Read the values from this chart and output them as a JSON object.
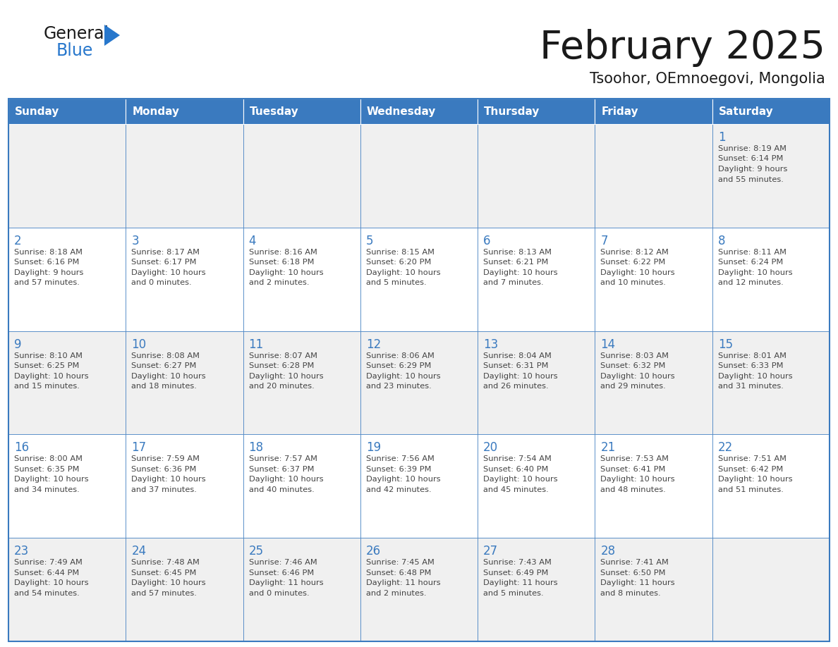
{
  "title": "February 2025",
  "subtitle": "Tsoohor, OEmnoegovi, Mongolia",
  "header_color": "#3a7abf",
  "header_text_color": "#ffffff",
  "cell_bg_light": "#f0f0f0",
  "cell_bg_white": "#ffffff",
  "border_color": "#3a7abf",
  "text_color": "#444444",
  "day_num_color": "#3a7abf",
  "days_of_week": [
    "Sunday",
    "Monday",
    "Tuesday",
    "Wednesday",
    "Thursday",
    "Friday",
    "Saturday"
  ],
  "calendar_data": [
    [
      null,
      null,
      null,
      null,
      null,
      null,
      {
        "day": "1",
        "sunrise": "8:19 AM",
        "sunset": "6:14 PM",
        "daylight_h": "9",
        "daylight_m": "55"
      }
    ],
    [
      {
        "day": "2",
        "sunrise": "8:18 AM",
        "sunset": "6:16 PM",
        "daylight_h": "9",
        "daylight_m": "57"
      },
      {
        "day": "3",
        "sunrise": "8:17 AM",
        "sunset": "6:17 PM",
        "daylight_h": "10",
        "daylight_m": "0"
      },
      {
        "day": "4",
        "sunrise": "8:16 AM",
        "sunset": "6:18 PM",
        "daylight_h": "10",
        "daylight_m": "2"
      },
      {
        "day": "5",
        "sunrise": "8:15 AM",
        "sunset": "6:20 PM",
        "daylight_h": "10",
        "daylight_m": "5"
      },
      {
        "day": "6",
        "sunrise": "8:13 AM",
        "sunset": "6:21 PM",
        "daylight_h": "10",
        "daylight_m": "7"
      },
      {
        "day": "7",
        "sunrise": "8:12 AM",
        "sunset": "6:22 PM",
        "daylight_h": "10",
        "daylight_m": "10"
      },
      {
        "day": "8",
        "sunrise": "8:11 AM",
        "sunset": "6:24 PM",
        "daylight_h": "10",
        "daylight_m": "12"
      }
    ],
    [
      {
        "day": "9",
        "sunrise": "8:10 AM",
        "sunset": "6:25 PM",
        "daylight_h": "10",
        "daylight_m": "15"
      },
      {
        "day": "10",
        "sunrise": "8:08 AM",
        "sunset": "6:27 PM",
        "daylight_h": "10",
        "daylight_m": "18"
      },
      {
        "day": "11",
        "sunrise": "8:07 AM",
        "sunset": "6:28 PM",
        "daylight_h": "10",
        "daylight_m": "20"
      },
      {
        "day": "12",
        "sunrise": "8:06 AM",
        "sunset": "6:29 PM",
        "daylight_h": "10",
        "daylight_m": "23"
      },
      {
        "day": "13",
        "sunrise": "8:04 AM",
        "sunset": "6:31 PM",
        "daylight_h": "10",
        "daylight_m": "26"
      },
      {
        "day": "14",
        "sunrise": "8:03 AM",
        "sunset": "6:32 PM",
        "daylight_h": "10",
        "daylight_m": "29"
      },
      {
        "day": "15",
        "sunrise": "8:01 AM",
        "sunset": "6:33 PM",
        "daylight_h": "10",
        "daylight_m": "31"
      }
    ],
    [
      {
        "day": "16",
        "sunrise": "8:00 AM",
        "sunset": "6:35 PM",
        "daylight_h": "10",
        "daylight_m": "34"
      },
      {
        "day": "17",
        "sunrise": "7:59 AM",
        "sunset": "6:36 PM",
        "daylight_h": "10",
        "daylight_m": "37"
      },
      {
        "day": "18",
        "sunrise": "7:57 AM",
        "sunset": "6:37 PM",
        "daylight_h": "10",
        "daylight_m": "40"
      },
      {
        "day": "19",
        "sunrise": "7:56 AM",
        "sunset": "6:39 PM",
        "daylight_h": "10",
        "daylight_m": "42"
      },
      {
        "day": "20",
        "sunrise": "7:54 AM",
        "sunset": "6:40 PM",
        "daylight_h": "10",
        "daylight_m": "45"
      },
      {
        "day": "21",
        "sunrise": "7:53 AM",
        "sunset": "6:41 PM",
        "daylight_h": "10",
        "daylight_m": "48"
      },
      {
        "day": "22",
        "sunrise": "7:51 AM",
        "sunset": "6:42 PM",
        "daylight_h": "10",
        "daylight_m": "51"
      }
    ],
    [
      {
        "day": "23",
        "sunrise": "7:49 AM",
        "sunset": "6:44 PM",
        "daylight_h": "10",
        "daylight_m": "54"
      },
      {
        "day": "24",
        "sunrise": "7:48 AM",
        "sunset": "6:45 PM",
        "daylight_h": "10",
        "daylight_m": "57"
      },
      {
        "day": "25",
        "sunrise": "7:46 AM",
        "sunset": "6:46 PM",
        "daylight_h": "11",
        "daylight_m": "0"
      },
      {
        "day": "26",
        "sunrise": "7:45 AM",
        "sunset": "6:48 PM",
        "daylight_h": "11",
        "daylight_m": "2"
      },
      {
        "day": "27",
        "sunrise": "7:43 AM",
        "sunset": "6:49 PM",
        "daylight_h": "11",
        "daylight_m": "5"
      },
      {
        "day": "28",
        "sunrise": "7:41 AM",
        "sunset": "6:50 PM",
        "daylight_h": "11",
        "daylight_m": "8"
      },
      null
    ]
  ],
  "logo_color_general": "#1a1a1a",
  "logo_color_blue": "#2777cc"
}
